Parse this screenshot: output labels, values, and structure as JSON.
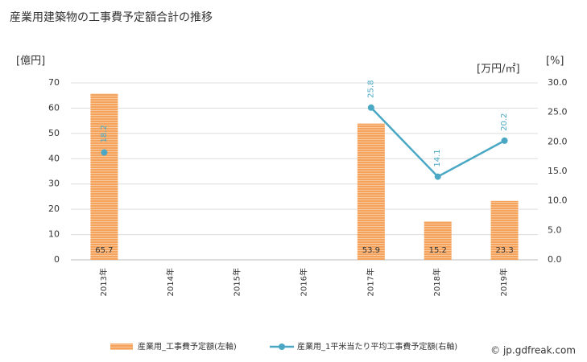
{
  "chart_data": {
    "type": "bar_line",
    "title": "産業用建築物の工事費予定額合計の推移",
    "y_label": "[億円]",
    "y2_label": "[万円/㎡]",
    "y2_label_alt": "[%]",
    "categories": [
      "2013年",
      "2014年",
      "2015年",
      "2016年",
      "2017年",
      "2018年",
      "2019年"
    ],
    "series": [
      {
        "name": "産業用_工事費予定額(左軸)",
        "type": "bar",
        "color": "#f5a35c",
        "values": [
          65.7,
          null,
          null,
          null,
          53.9,
          15.2,
          23.3
        ]
      },
      {
        "name": "産業用_1平米当たり平均工事費予定額(右軸)",
        "type": "line",
        "axis": "y2",
        "color": "#4aa8c4",
        "values": [
          18.2,
          null,
          null,
          null,
          25.8,
          14.1,
          20.2
        ]
      }
    ],
    "ylim": [
      0,
      70
    ],
    "yticks": [
      0,
      10,
      20,
      30,
      40,
      50,
      60,
      70
    ],
    "y2lim": [
      0,
      30
    ],
    "y2ticks": [
      {
        "value": 0,
        "label": "0.0"
      },
      {
        "value": 5,
        "label": "5.0"
      },
      {
        "value": 10,
        "label": "10.0"
      },
      {
        "value": 15,
        "label": "15.0"
      },
      {
        "value": 20,
        "label": "20.0"
      },
      {
        "value": 25,
        "label": "25.0"
      },
      {
        "value": 30,
        "label": "30.0"
      }
    ],
    "grid": true,
    "source": "© jp.gdfreak.com"
  }
}
